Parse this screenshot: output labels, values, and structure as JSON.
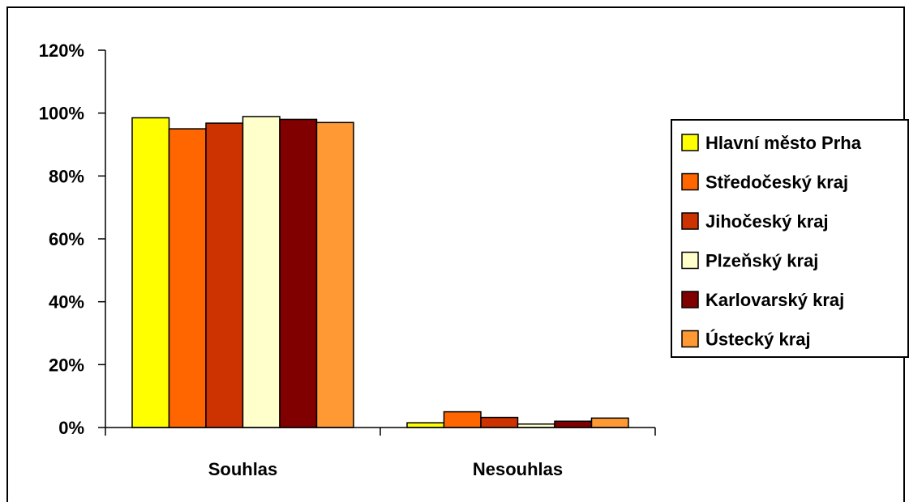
{
  "chart_data": {
    "type": "bar",
    "categories": [
      "Souhlas",
      "Nesouhlas"
    ],
    "series": [
      {
        "name": "Hlavní město Prha",
        "color": "#FFFF00",
        "values": [
          98.5,
          1.5
        ]
      },
      {
        "name": "Středočeský kraj",
        "color": "#FF6600",
        "values": [
          95.0,
          5.0
        ]
      },
      {
        "name": "Jihočeský kraj",
        "color": "#CC3300",
        "values": [
          96.8,
          3.2
        ]
      },
      {
        "name": "Plzeňský kraj",
        "color": "#FFFFCC",
        "values": [
          98.9,
          1.1
        ]
      },
      {
        "name": "Karlovarský kraj",
        "color": "#800000",
        "values": [
          98.0,
          2.0
        ]
      },
      {
        "name": "Ústecký kraj",
        "color": "#FF9933",
        "values": [
          97.0,
          3.0
        ]
      }
    ],
    "y_ticks": [
      "0%",
      "20%",
      "40%",
      "60%",
      "80%",
      "100%",
      "120%"
    ],
    "ylim": [
      0,
      120
    ],
    "grid": false,
    "legend_position": "right",
    "title": "",
    "xlabel": "",
    "ylabel": ""
  }
}
